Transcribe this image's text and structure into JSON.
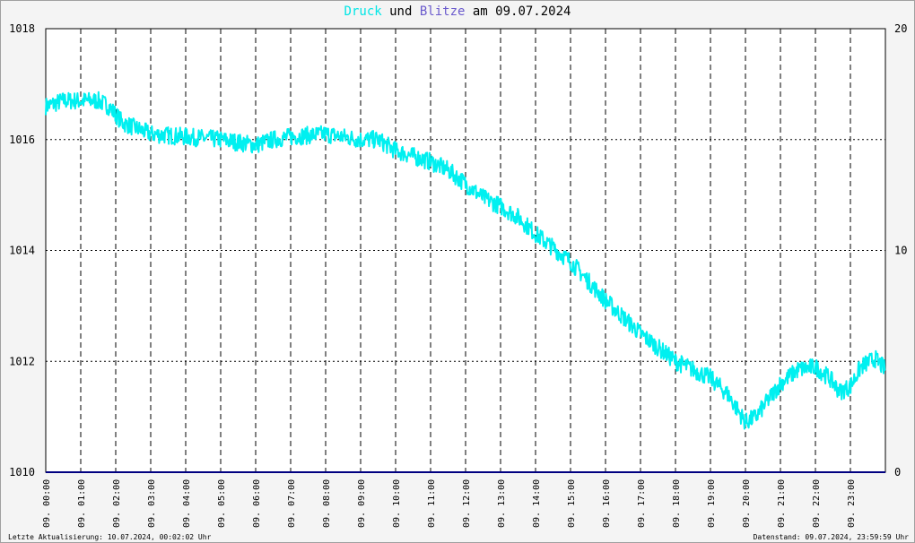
{
  "title": {
    "series1": "Druck",
    "connector": "und",
    "series2": "Blitze",
    "suffix": "am 09.07.2024"
  },
  "footer": {
    "left": "Letzte Aktualisierung: 10.07.2024, 00:02:02 Uhr",
    "right": "Datenstand: 09.07.2024, 23:59:59 Uhr"
  },
  "colors": {
    "pressure": "#00f0f0",
    "lightning": "#6a5acd",
    "axis_line": "#000080",
    "grid": "#000000",
    "background": "#ffffff"
  },
  "chart_data": {
    "type": "line",
    "title": "Druck und Blitze am 09.07.2024",
    "xlabel": "",
    "ylabel": "",
    "grid": true,
    "x_ticks": [
      "09. 00:00",
      "09. 01:00",
      "09. 02:00",
      "09. 03:00",
      "09. 04:00",
      "09. 05:00",
      "09. 06:00",
      "09. 07:00",
      "09. 08:00",
      "09. 09:00",
      "09. 10:00",
      "09. 11:00",
      "09. 12:00",
      "09. 13:00",
      "09. 14:00",
      "09. 15:00",
      "09. 16:00",
      "09. 17:00",
      "09. 18:00",
      "09. 19:00",
      "09. 20:00",
      "09. 21:00",
      "09. 22:00",
      "09. 23:00"
    ],
    "y_left": {
      "ticks": [
        1010,
        1012,
        1014,
        1016,
        1018
      ],
      "ylim": [
        1010,
        1018
      ]
    },
    "y_right": {
      "ticks": [
        0,
        10,
        20
      ],
      "ylim": [
        0,
        20
      ]
    },
    "series": [
      {
        "name": "Druck",
        "axis": "left",
        "x_hours": [
          0,
          0.5,
          1,
          1.5,
          1.8,
          2.2,
          2.6,
          3,
          4,
          5,
          6,
          6.5,
          7,
          8,
          9,
          9.5,
          10,
          11,
          11.5,
          12,
          12.5,
          13,
          13.5,
          14,
          15,
          16,
          17,
          18,
          19,
          19.5,
          20,
          20.3,
          21,
          21.5,
          22,
          22.4,
          22.7,
          23,
          23.3,
          23.7,
          24
        ],
        "values": [
          1016.6,
          1016.7,
          1016.7,
          1016.7,
          1016.6,
          1016.3,
          1016.2,
          1016.1,
          1016.05,
          1016.0,
          1015.9,
          1016.0,
          1016.05,
          1016.1,
          1016.0,
          1016.0,
          1015.8,
          1015.6,
          1015.45,
          1015.2,
          1014.95,
          1014.8,
          1014.6,
          1014.3,
          1013.8,
          1013.1,
          1012.5,
          1012.0,
          1011.7,
          1011.4,
          1010.9,
          1011.0,
          1011.6,
          1011.85,
          1011.9,
          1011.7,
          1011.45,
          1011.55,
          1011.9,
          1012.05,
          1011.85
        ]
      },
      {
        "name": "Blitze",
        "axis": "right",
        "x_hours": [
          0,
          24
        ],
        "values": [
          0,
          0
        ]
      }
    ]
  }
}
